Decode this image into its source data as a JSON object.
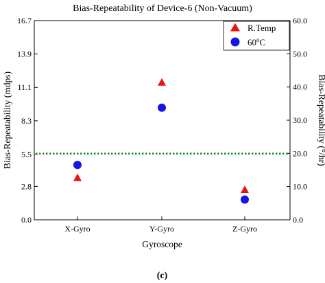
{
  "chart_data": {
    "type": "scatter",
    "title": "Bias-Repeatability of Device-6 (Non-Vacuum)",
    "xlabel": "Gyroscope",
    "ylabel": "Bias-Repeatability (mdps)",
    "ylabel_right": "Bias-Repeatability (°/hr)",
    "categories": [
      "X-Gyro",
      "Y-Gyro",
      "Z-Gyro"
    ],
    "ylim": [
      0.0,
      16.7
    ],
    "yticks": [
      "0.0",
      "2.8",
      "5.5",
      "8.3",
      "11.1",
      "13.9",
      "16.7"
    ],
    "y2lim": [
      0.0,
      60.0
    ],
    "y2ticks": [
      "0.0",
      "10.0",
      "20.0",
      "30.0",
      "40.0",
      "50.0",
      "60.0"
    ],
    "series": [
      {
        "name": "R.Temp",
        "marker": "triangle",
        "color": "#e8150f",
        "values": [
          3.5,
          11.5,
          2.5
        ]
      },
      {
        "name": "60oC",
        "marker": "circle",
        "color": "#1515e6",
        "values": [
          4.6,
          9.4,
          1.7
        ]
      }
    ],
    "reference_line": {
      "y": 5.55,
      "color": "#1a8a1a",
      "style": "dotted"
    },
    "legend_position": "top-right",
    "grid": false
  },
  "caption": "(c)"
}
